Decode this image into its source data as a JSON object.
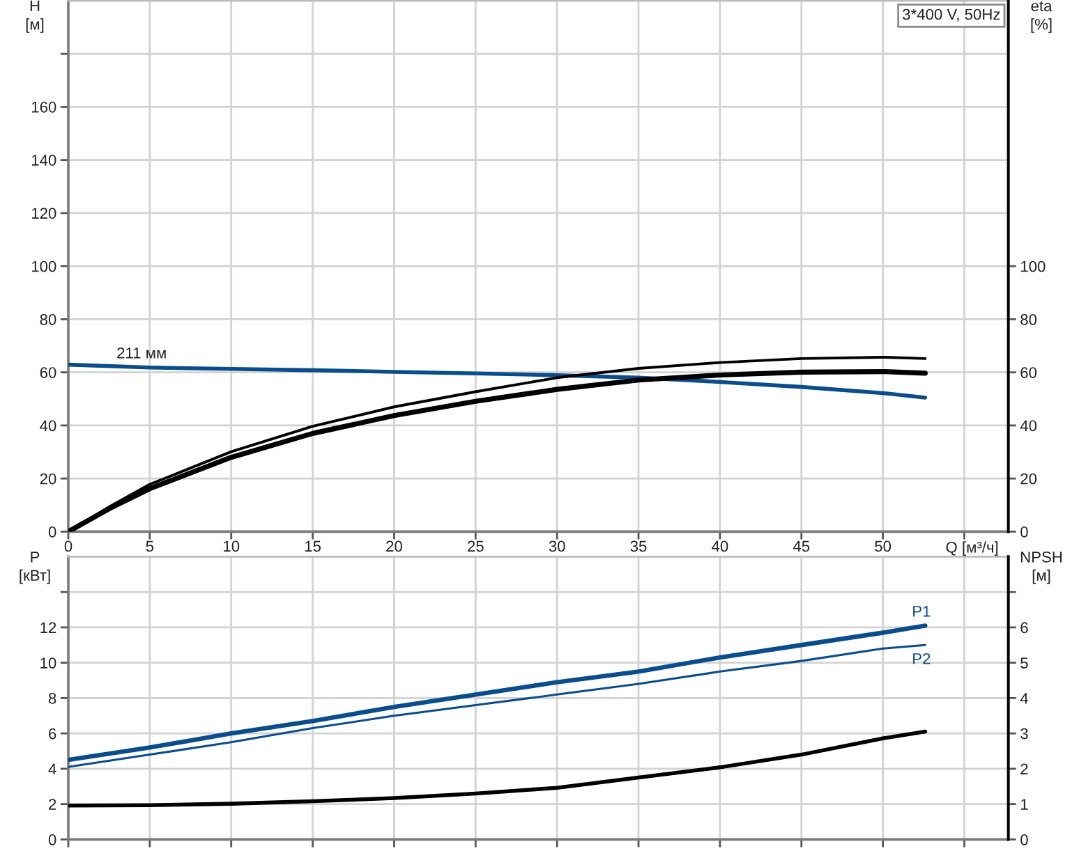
{
  "chart_data": [
    {
      "type": "line",
      "title": "3*400 V, 50Hz",
      "xlabel": "Q [м³/ч]",
      "ylabel": "H\n[м]",
      "y2label": "eta\n[%]",
      "xlim": [
        0,
        57.7
      ],
      "xticks": [
        0,
        5,
        10,
        15,
        20,
        25,
        30,
        35,
        40,
        45,
        50,
        {
          "value": 55,
          "label": null
        }
      ],
      "ylim": [
        0,
        200
      ],
      "yticks": [
        0,
        20,
        40,
        60,
        80,
        100,
        120,
        140,
        160,
        {
          "value": 180,
          "label": null
        }
      ],
      "y2lim": [
        0,
        200
      ],
      "y2ticks": [
        0,
        20,
        40,
        60,
        80,
        100
      ],
      "grid": true,
      "annotations": [
        {
          "text": "211 мм",
          "x": 4.5,
          "y": 61.9
        }
      ],
      "series": [
        {
          "color": "#0a4d8c",
          "axis": "y",
          "x": [
            0,
            5,
            10,
            15,
            20,
            25,
            30,
            35,
            40,
            45,
            50,
            52.6
          ],
          "values": [
            62.9,
            61.8,
            61.3,
            60.8,
            60.2,
            59.6,
            58.9,
            58.0,
            56.4,
            54.5,
            52.2,
            50.5
          ]
        },
        {
          "color": "#000000",
          "axis": "y2",
          "x": [
            0,
            2.5,
            5,
            10,
            15,
            20,
            25,
            30,
            35,
            40,
            45,
            50,
            52.6
          ],
          "values": [
            0,
            9.3,
            17.8,
            30.1,
            39.7,
            47.0,
            52.7,
            58.0,
            61.5,
            63.7,
            65.2,
            65.7,
            65.2
          ]
        },
        {
          "color": "#000000",
          "axis": "y2",
          "x": [
            0,
            2.5,
            5,
            10,
            15,
            20,
            25,
            30,
            35,
            40,
            45,
            50,
            52.6
          ],
          "values": [
            0,
            8.6,
            16.2,
            28.0,
            37.0,
            43.7,
            49.1,
            53.6,
            57.1,
            59.0,
            60.1,
            60.3,
            59.7
          ]
        }
      ]
    },
    {
      "type": "line",
      "ylabel": "P\n[кВт]",
      "y2label": "NPSH\n[м]",
      "xlim": [
        0,
        57.7
      ],
      "xticks": [
        0,
        5,
        10,
        15,
        20,
        25,
        30,
        35,
        40,
        45,
        50,
        55
      ],
      "tick_labels": "y",
      "ylim": [
        0,
        16
      ],
      "yticks": [
        0,
        2,
        4,
        6,
        8,
        10,
        12,
        {
          "value": 14,
          "label": null
        }
      ],
      "y2lim": [
        0,
        8
      ],
      "y2ticks": [
        0,
        1,
        2,
        3,
        4,
        5,
        6,
        {
          "value": 7,
          "label": null
        }
      ],
      "grid": true,
      "series": [
        {
          "name": "P1",
          "color": "#0a4d8c",
          "axis": "y",
          "x": [
            0,
            5,
            10,
            15,
            20,
            25,
            30,
            35,
            40,
            45,
            50,
            52.6
          ],
          "values": [
            4.5,
            5.2,
            6.0,
            6.7,
            7.5,
            8.2,
            8.9,
            9.5,
            10.3,
            11.0,
            11.7,
            12.1
          ]
        },
        {
          "name": "P2",
          "color": "#0a4d8c",
          "axis": "y",
          "x": [
            0,
            5,
            10,
            15,
            20,
            25,
            30,
            35,
            40,
            45,
            50,
            52.6
          ],
          "values": [
            4.1,
            4.8,
            5.5,
            6.3,
            7.0,
            7.6,
            8.2,
            8.8,
            9.5,
            10.1,
            10.8,
            11.0
          ]
        },
        {
          "color": "#000000",
          "axis": "y2",
          "x": [
            0,
            5,
            10,
            15,
            20,
            25,
            30,
            35,
            40,
            45,
            50,
            52.6
          ],
          "values": [
            0.96,
            0.97,
            1.01,
            1.08,
            1.17,
            1.3,
            1.46,
            1.75,
            2.04,
            2.4,
            2.86,
            3.05
          ]
        }
      ]
    }
  ]
}
